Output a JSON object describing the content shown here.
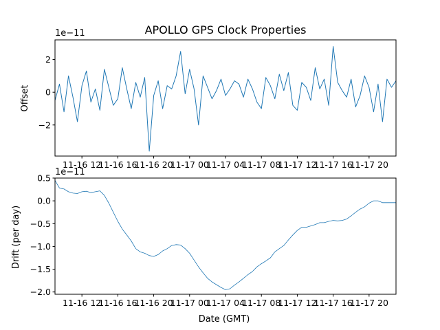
{
  "chart_data": [
    {
      "type": "line",
      "title": "APOLLO GPS Clock Properties",
      "xlabel": "",
      "ylabel": "Offset",
      "scale_label": "1e−11",
      "color": "#1f77b4",
      "x_start": "11-16 09:00",
      "x_end": "11-17 23:00",
      "xtick_labels": [
        "11-16 12",
        "11-16 16",
        "11-16 20",
        "11-17 00",
        "11-17 04",
        "11-17 08",
        "11-17 12",
        "11-17 16",
        "11-17 20"
      ],
      "ylim": [
        -3.9,
        3.2
      ],
      "yticks": [
        -2,
        0,
        2
      ],
      "ytick_labels": [
        "−2",
        "0",
        "2"
      ],
      "x_hours": [
        0,
        0.5,
        1.0,
        1.5,
        2.0,
        2.5,
        3.0,
        3.5,
        4.0,
        4.5,
        5.0,
        5.5,
        6.0,
        6.5,
        7.0,
        7.5,
        8.0,
        8.5,
        9.0,
        9.5,
        10.0,
        10.5,
        11.0,
        11.5,
        12.0,
        12.5,
        13.0,
        13.5,
        14.0,
        14.5,
        15.0,
        15.5,
        16.0,
        16.5,
        17.0,
        17.5,
        18.0,
        18.5,
        19.0,
        19.5,
        20.0,
        20.5,
        21.0,
        21.5,
        22.0,
        22.5,
        23.0,
        23.5,
        24.0,
        24.5,
        25.0,
        25.5,
        26.0,
        26.5,
        27.0,
        27.5,
        28.0,
        28.5,
        29.0,
        29.5,
        30.0,
        30.5,
        31.0,
        31.5,
        32.0,
        32.5,
        33.0,
        33.5,
        34.0,
        34.5,
        35.0,
        35.5,
        36.0,
        36.5,
        37.0,
        37.5,
        38.0
      ],
      "values": [
        -0.5,
        0.5,
        -1.2,
        1.0,
        -0.3,
        -1.8,
        0.4,
        1.3,
        -0.6,
        0.2,
        -1.1,
        1.4,
        0.3,
        -0.8,
        -0.4,
        1.5,
        0.2,
        -1.0,
        0.6,
        -0.3,
        0.9,
        -3.6,
        -0.2,
        0.7,
        -1.0,
        0.4,
        0.2,
        1.0,
        2.5,
        -0.1,
        1.4,
        0.2,
        -2.0,
        1.0,
        0.3,
        -0.4,
        0.1,
        0.8,
        -0.2,
        0.2,
        0.7,
        0.5,
        -0.3,
        0.8,
        0.2,
        -0.6,
        -1.0,
        0.9,
        0.4,
        -0.4,
        1.1,
        0.1,
        1.2,
        -0.8,
        -1.1,
        0.6,
        0.3,
        -0.5,
        1.5,
        0.2,
        0.8,
        -0.8,
        2.8,
        0.6,
        0.1,
        -0.3,
        0.8,
        -0.9,
        -0.2,
        1.0,
        0.3,
        -1.2,
        0.5,
        -1.8,
        0.8,
        0.3,
        0.7
      ]
    },
    {
      "type": "line",
      "title": "",
      "xlabel": "Date (GMT)",
      "ylabel": "Drift (per day)",
      "scale_label": "1e−11",
      "color": "#1f77b4",
      "x_start": "11-16 09:00",
      "x_end": "11-17 23:00",
      "xtick_labels": [
        "11-16 12",
        "11-16 16",
        "11-16 20",
        "11-17 00",
        "11-17 04",
        "11-17 08",
        "11-17 12",
        "11-17 16",
        "11-17 20"
      ],
      "ylim": [
        -2.05,
        0.5
      ],
      "yticks": [
        -2.0,
        -1.5,
        -1.0,
        -0.5,
        0.0,
        0.5
      ],
      "ytick_labels": [
        "−2.0",
        "−1.5",
        "−1.0",
        "−0.5",
        "0.0",
        "0.5"
      ],
      "x_hours": [
        0,
        0.5,
        1.0,
        1.5,
        2.0,
        2.5,
        3.0,
        3.5,
        4.0,
        4.5,
        5.0,
        5.5,
        6.0,
        6.5,
        7.0,
        7.5,
        8.0,
        8.5,
        9.0,
        9.5,
        10.0,
        10.5,
        11.0,
        11.5,
        12.0,
        12.5,
        13.0,
        13.5,
        14.0,
        14.5,
        15.0,
        15.5,
        16.0,
        16.5,
        17.0,
        17.5,
        18.0,
        18.5,
        19.0,
        19.5,
        20.0,
        20.5,
        21.0,
        21.5,
        22.0,
        22.5,
        23.0,
        23.5,
        24.0,
        24.5,
        25.0,
        25.5,
        26.0,
        26.5,
        27.0,
        27.5,
        28.0,
        28.5,
        29.0,
        29.5,
        30.0,
        30.5,
        31.0,
        31.5,
        32.0,
        32.5,
        33.0,
        33.5,
        34.0,
        34.5,
        35.0,
        35.5,
        36.0,
        36.5,
        37.0,
        37.5,
        38.0
      ],
      "values": [
        0.45,
        0.28,
        0.26,
        0.2,
        0.17,
        0.16,
        0.2,
        0.21,
        0.18,
        0.2,
        0.22,
        0.12,
        -0.05,
        -0.25,
        -0.45,
        -0.62,
        -0.75,
        -0.88,
        -1.05,
        -1.12,
        -1.15,
        -1.2,
        -1.22,
        -1.18,
        -1.1,
        -1.05,
        -0.98,
        -0.96,
        -0.97,
        -1.05,
        -1.15,
        -1.3,
        -1.45,
        -1.58,
        -1.7,
        -1.78,
        -1.84,
        -1.9,
        -1.95,
        -1.93,
        -1.85,
        -1.78,
        -1.7,
        -1.62,
        -1.55,
        -1.45,
        -1.38,
        -1.32,
        -1.25,
        -1.12,
        -1.05,
        -0.98,
        -0.86,
        -0.75,
        -0.65,
        -0.58,
        -0.58,
        -0.55,
        -0.52,
        -0.48,
        -0.48,
        -0.45,
        -0.43,
        -0.44,
        -0.43,
        -0.4,
        -0.33,
        -0.25,
        -0.18,
        -0.13,
        -0.05,
        0.0,
        0.0,
        -0.04,
        -0.04,
        -0.04,
        -0.04
      ]
    }
  ]
}
